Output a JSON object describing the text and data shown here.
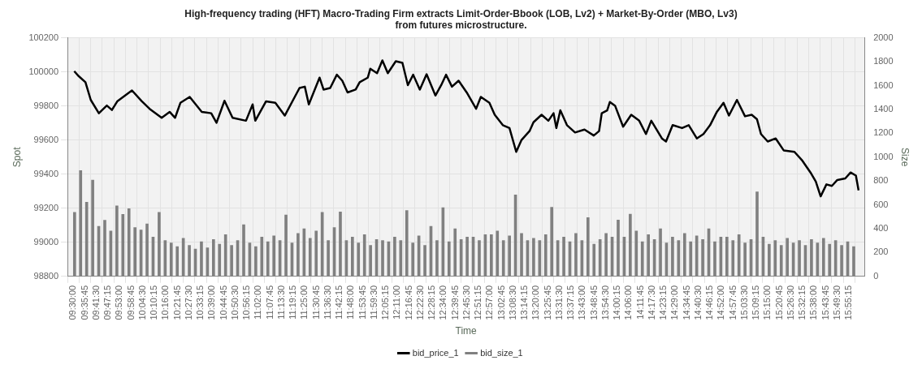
{
  "chart_data": {
    "type": "line",
    "title": "High-frequency trading (HFT) Macro-Trading Firm extracts Limit-Order-Bbook (LOB, Lv2) + Market-By-Order (MBO, Lv3)\nfrom futures microstructure.",
    "xlabel": "Time",
    "ylabel": "Spot",
    "y2label": "Size",
    "xlim": [
      9.5,
      16
    ],
    "xticks": [
      {
        "value": 9.5,
        "label": "09:30:00"
      },
      {
        "value": 9.595833,
        "label": "09:35:45"
      },
      {
        "value": 9.691667,
        "label": "09:41:30"
      },
      {
        "value": 9.7875,
        "label": "09:47:15"
      },
      {
        "value": 9.883333,
        "label": "09:53:00"
      },
      {
        "value": 9.979167,
        "label": "09:58:45"
      },
      {
        "value": 10.075,
        "label": "10:04:30"
      },
      {
        "value": 10.170833,
        "label": "10:10:15"
      },
      {
        "value": 10.266667,
        "label": "10:16:00"
      },
      {
        "value": 10.3625,
        "label": "10:21:45"
      },
      {
        "value": 10.458333,
        "label": "10:27:30"
      },
      {
        "value": 10.554167,
        "label": "10:33:15"
      },
      {
        "value": 10.65,
        "label": "10:39:00"
      },
      {
        "value": 10.745833,
        "label": "10:44:45"
      },
      {
        "value": 10.841667,
        "label": "10:50:30"
      },
      {
        "value": 10.9375,
        "label": "10:56:15"
      },
      {
        "value": 11.033333,
        "label": "11:02:00"
      },
      {
        "value": 11.129167,
        "label": "11:07:45"
      },
      {
        "value": 11.225,
        "label": "11:13:30"
      },
      {
        "value": 11.320833,
        "label": "11:19:15"
      },
      {
        "value": 11.416667,
        "label": "11:25:00"
      },
      {
        "value": 11.5125,
        "label": "11:30:45"
      },
      {
        "value": 11.608333,
        "label": "11:36:30"
      },
      {
        "value": 11.704167,
        "label": "11:42:15"
      },
      {
        "value": 11.8,
        "label": "11:48:00"
      },
      {
        "value": 11.895833,
        "label": "11:53:45"
      },
      {
        "value": 11.991667,
        "label": "11:59:30"
      },
      {
        "value": 12.0875,
        "label": "12:05:15"
      },
      {
        "value": 12.183333,
        "label": "12:11:00"
      },
      {
        "value": 12.279167,
        "label": "12:16:45"
      },
      {
        "value": 12.375,
        "label": "12:22:30"
      },
      {
        "value": 12.470833,
        "label": "12:28:15"
      },
      {
        "value": 12.566667,
        "label": "12:34:00"
      },
      {
        "value": 12.6625,
        "label": "12:39:45"
      },
      {
        "value": 12.758333,
        "label": "12:45:30"
      },
      {
        "value": 12.854167,
        "label": "12:51:15"
      },
      {
        "value": 12.95,
        "label": "12:57:00"
      },
      {
        "value": 13.045833,
        "label": "13:02:45"
      },
      {
        "value": 13.141667,
        "label": "13:08:30"
      },
      {
        "value": 13.2375,
        "label": "13:14:15"
      },
      {
        "value": 13.333333,
        "label": "13:20:00"
      },
      {
        "value": 13.429167,
        "label": "13:25:45"
      },
      {
        "value": 13.525,
        "label": "13:31:30"
      },
      {
        "value": 13.620833,
        "label": "13:37:15"
      },
      {
        "value": 13.716667,
        "label": "13:43:00"
      },
      {
        "value": 13.8125,
        "label": "13:48:45"
      },
      {
        "value": 13.908333,
        "label": "13:54:30"
      },
      {
        "value": 14.004167,
        "label": "14:00:15"
      },
      {
        "value": 14.1,
        "label": "14:06:00"
      },
      {
        "value": 14.195833,
        "label": "14:11:45"
      },
      {
        "value": 14.291667,
        "label": "14:17:30"
      },
      {
        "value": 14.3875,
        "label": "14:23:15"
      },
      {
        "value": 14.483333,
        "label": "14:29:00"
      },
      {
        "value": 14.579167,
        "label": "14:34:45"
      },
      {
        "value": 14.675,
        "label": "14:40:30"
      },
      {
        "value": 14.770833,
        "label": "14:46:15"
      },
      {
        "value": 14.866667,
        "label": "14:52:00"
      },
      {
        "value": 14.9625,
        "label": "14:57:45"
      },
      {
        "value": 15.058333,
        "label": "15:03:30"
      },
      {
        "value": 15.154167,
        "label": "15:09:15"
      },
      {
        "value": 15.25,
        "label": "15:15:00"
      },
      {
        "value": 15.345833,
        "label": "15:20:45"
      },
      {
        "value": 15.441667,
        "label": "15:26:30"
      },
      {
        "value": 15.5375,
        "label": "15:32:15"
      },
      {
        "value": 15.633333,
        "label": "15:38:00"
      },
      {
        "value": 15.729167,
        "label": "15:43:45"
      },
      {
        "value": 15.825,
        "label": "15:49:30"
      },
      {
        "value": 15.920833,
        "label": "15:55:15"
      }
    ],
    "ylim": [
      98800,
      100200
    ],
    "yticks": [
      98800,
      99000,
      99200,
      99400,
      99600,
      99800,
      100000,
      100200
    ],
    "y2lim": [
      0,
      2000
    ],
    "y2ticks": [
      0,
      200,
      400,
      600,
      800,
      1000,
      1200,
      1400,
      1600,
      1800,
      2000
    ],
    "grid": true,
    "legend": "bottom",
    "marker": "none",
    "line_style": "solid",
    "series": [
      {
        "name": "bid_price_1",
        "color": "#000000",
        "x": [
          9.507,
          9.545,
          9.6,
          9.644,
          9.711,
          9.777,
          9.819,
          9.865,
          9.985,
          10.065,
          10.131,
          10.231,
          10.297,
          10.342,
          10.386,
          10.463,
          10.563,
          10.641,
          10.685,
          10.751,
          10.818,
          10.929,
          10.984,
          11.006,
          11.095,
          11.172,
          11.25,
          11.372,
          11.416,
          11.449,
          11.538,
          11.571,
          11.626,
          11.681,
          11.726,
          11.77,
          11.837,
          11.87,
          11.937,
          11.958,
          12.014,
          12.058,
          12.103,
          12.169,
          12.224,
          12.269,
          12.313,
          12.368,
          12.424,
          12.497,
          12.545,
          12.585,
          12.634,
          12.689,
          12.756,
          12.834,
          12.873,
          12.944,
          12.988,
          13.055,
          13.11,
          13.166,
          13.21,
          13.276,
          13.309,
          13.376,
          13.432,
          13.475,
          13.498,
          13.531,
          13.586,
          13.653,
          13.731,
          13.808,
          13.852,
          13.874,
          13.919,
          13.941,
          13.985,
          14.051,
          14.118,
          14.184,
          14.24,
          14.284,
          14.372,
          14.406,
          14.461,
          14.539,
          14.594,
          14.661,
          14.716,
          14.771,
          14.827,
          14.882,
          14.927,
          14.993,
          15.06,
          15.115,
          15.159,
          15.192,
          15.248,
          15.314,
          15.38,
          15.469,
          15.535,
          15.602,
          15.646,
          15.686,
          15.734,
          15.779,
          15.824,
          15.89,
          15.934,
          15.978,
          16.0
        ],
        "values": [
          100005,
          99975,
          99940,
          99836,
          99758,
          99803,
          99777,
          99829,
          99892,
          99829,
          99784,
          99731,
          99766,
          99731,
          99819,
          99854,
          99766,
          99758,
          99702,
          99831,
          99731,
          99714,
          99810,
          99714,
          99828,
          99819,
          99744,
          99906,
          99914,
          99810,
          99967,
          99897,
          99906,
          99984,
          99949,
          99880,
          99897,
          99940,
          99967,
          100019,
          99993,
          100068,
          99993,
          100063,
          100054,
          99923,
          99984,
          99897,
          99987,
          99862,
          99923,
          99984,
          99914,
          99949,
          99880,
          99784,
          99854,
          99819,
          99749,
          99688,
          99671,
          99531,
          99601,
          99653,
          99705,
          99749,
          99714,
          99758,
          99671,
          99775,
          99688,
          99645,
          99662,
          99627,
          99653,
          99758,
          99775,
          99824,
          99801,
          99679,
          99749,
          99714,
          99636,
          99714,
          99610,
          99592,
          99688,
          99671,
          99688,
          99610,
          99636,
          99688,
          99766,
          99819,
          99744,
          99836,
          99740,
          99749,
          99723,
          99636,
          99592,
          99610,
          99540,
          99531,
          99479,
          99410,
          99357,
          99270,
          99340,
          99331,
          99366,
          99375,
          99410,
          99392,
          99305
        ]
      },
      {
        "name": "bid_size_1",
        "type": "bar",
        "axis": "y2",
        "color": "#808080",
        "x": [
          9.51,
          9.56,
          9.61,
          9.66,
          9.71,
          9.76,
          9.81,
          9.86,
          9.91,
          9.96,
          10.01,
          10.06,
          10.11,
          10.16,
          10.21,
          10.26,
          10.31,
          10.36,
          10.41,
          10.46,
          10.51,
          10.56,
          10.61,
          10.66,
          10.71,
          10.76,
          10.81,
          10.86,
          10.91,
          10.96,
          11.01,
          11.06,
          11.11,
          11.16,
          11.21,
          11.26,
          11.31,
          11.36,
          11.41,
          11.46,
          11.51,
          11.56,
          11.61,
          11.66,
          11.71,
          11.76,
          11.81,
          11.86,
          11.91,
          11.96,
          12.01,
          12.06,
          12.11,
          12.16,
          12.21,
          12.26,
          12.31,
          12.36,
          12.41,
          12.46,
          12.51,
          12.56,
          12.61,
          12.66,
          12.71,
          12.76,
          12.81,
          12.86,
          12.91,
          12.96,
          13.01,
          13.06,
          13.11,
          13.16,
          13.21,
          13.26,
          13.31,
          13.36,
          13.41,
          13.46,
          13.51,
          13.56,
          13.61,
          13.66,
          13.71,
          13.76,
          13.81,
          13.86,
          13.91,
          13.96,
          14.01,
          14.06,
          14.11,
          14.16,
          14.21,
          14.26,
          14.31,
          14.36,
          14.41,
          14.46,
          14.51,
          14.56,
          14.61,
          14.66,
          14.71,
          14.76,
          14.81,
          14.86,
          14.91,
          14.96,
          15.01,
          15.06,
          15.11,
          15.16,
          15.21,
          15.26,
          15.31,
          15.36,
          15.41,
          15.46,
          15.51,
          15.56,
          15.61,
          15.66,
          15.71,
          15.76,
          15.81,
          15.86,
          15.91,
          15.96
        ],
        "values": [
          537,
          888,
          622,
          808,
          420,
          470,
          380,
          592,
          520,
          567,
          410,
          390,
          440,
          330,
          537,
          300,
          280,
          250,
          320,
          260,
          230,
          290,
          240,
          310,
          270,
          350,
          260,
          300,
          433,
          280,
          250,
          330,
          290,
          340,
          300,
          515,
          280,
          360,
          400,
          320,
          380,
          537,
          300,
          410,
          540,
          300,
          330,
          280,
          350,
          260,
          310,
          300,
          290,
          330,
          300,
          552,
          280,
          340,
          260,
          420,
          300,
          577,
          290,
          400,
          310,
          330,
          330,
          300,
          350,
          350,
          380,
          300,
          340,
          684,
          360,
          300,
          320,
          300,
          350,
          580,
          300,
          330,
          290,
          360,
          300,
          493,
          270,
          310,
          360,
          330,
          473,
          330,
          522,
          380,
          290,
          350,
          310,
          400,
          280,
          330,
          300,
          360,
          290,
          340,
          310,
          400,
          290,
          330,
          330,
          300,
          350,
          280,
          310,
          709,
          330,
          270,
          300,
          260,
          320,
          280,
          300,
          260,
          310,
          280,
          320,
          270,
          300,
          260,
          290,
          250
        ]
      }
    ]
  }
}
